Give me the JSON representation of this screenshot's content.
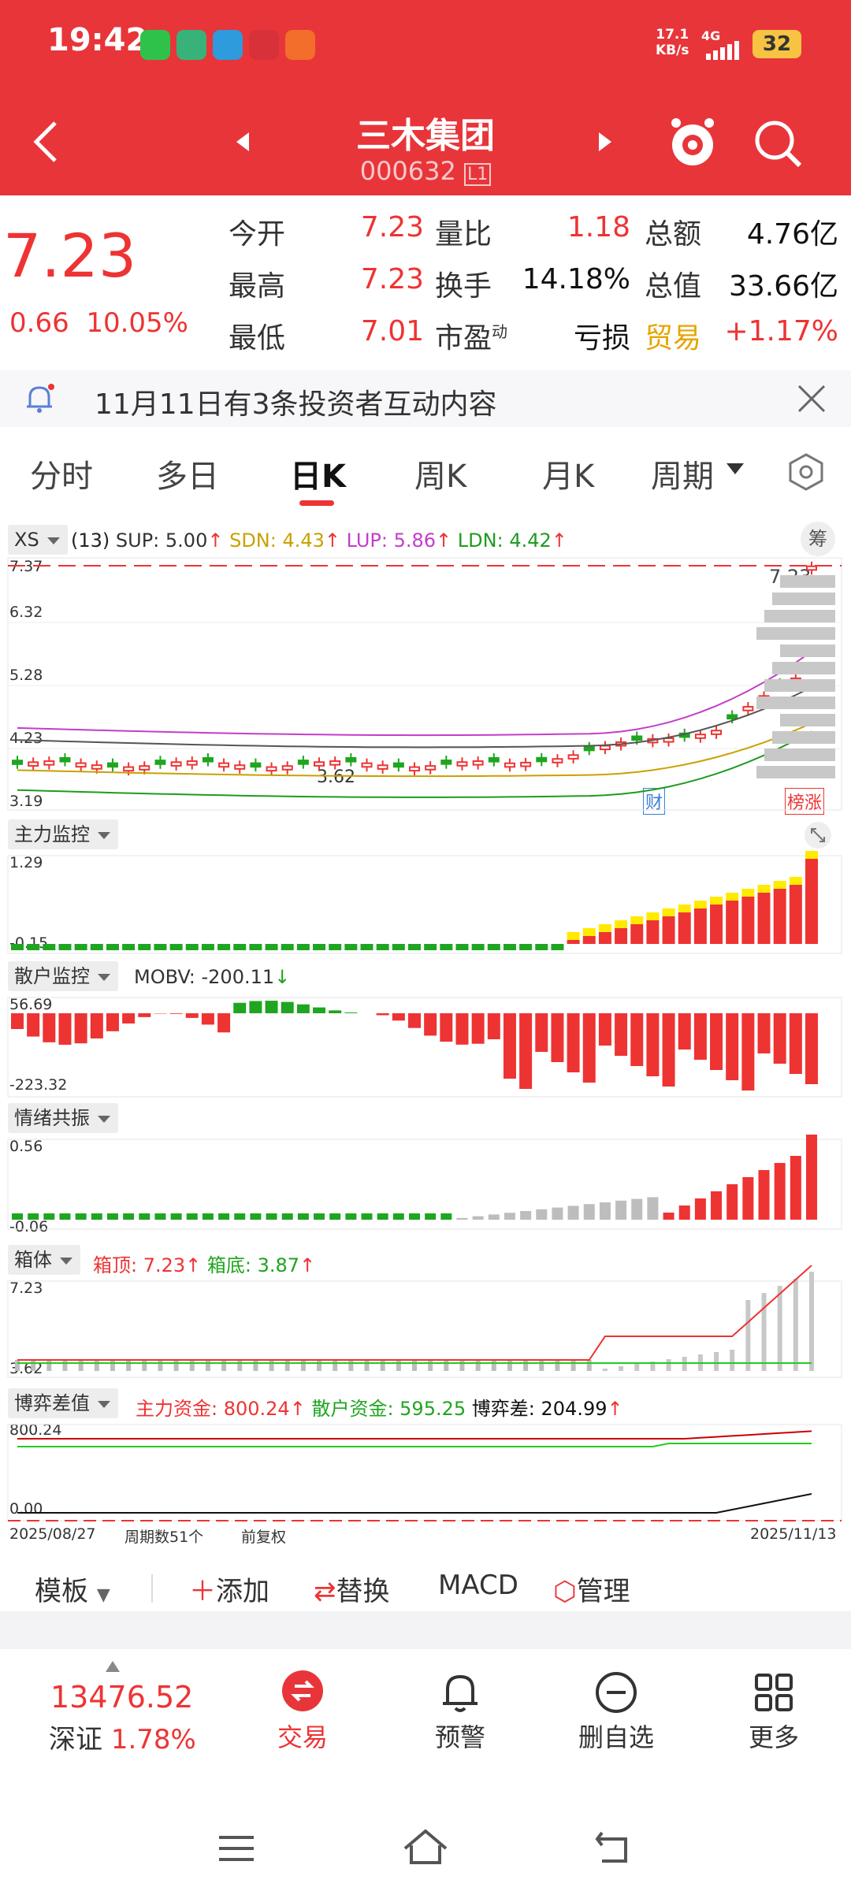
{
  "status": {
    "time": "19:42",
    "net_speed": "17.1",
    "net_unit": "KB/s",
    "signal": "4G",
    "battery": "32"
  },
  "header": {
    "title": "三木集团",
    "code": "000632",
    "level": "L1"
  },
  "quote": {
    "price": "7.23",
    "change": "0.66",
    "pct": "10.05%",
    "rows": [
      {
        "l1": "今开",
        "v1": "7.23",
        "l2": "量比",
        "v2": "1.18",
        "l3": "总额",
        "v3": "4.76亿"
      },
      {
        "l1": "最高",
        "v1": "7.23",
        "l2": "换手",
        "v2": "14.18%",
        "l3": "总值",
        "v3": "33.66亿"
      },
      {
        "l1": "最低",
        "v1": "7.01",
        "l2": "市盈",
        "l2sup": "动",
        "v2": "亏损",
        "l3": "贸易",
        "v3": "+1.17%"
      }
    ]
  },
  "notice": {
    "text": "11月11日有3条投资者互动内容"
  },
  "tabs": [
    "分时",
    "多日",
    "日K",
    "周K",
    "月K",
    "周期"
  ],
  "colors": {
    "red": "#e8353a",
    "up": "#e33",
    "down": "#1fa51f",
    "yellow": "#ffea00",
    "gray": "#bdbdbd"
  },
  "chart": {
    "main": {
      "tag": "XS",
      "params": "(13)",
      "sup": "SUP: 5.00",
      "sdn": "SDN: 4.43",
      "lup": "LUP: 5.86",
      "ldn": "LDN: 4.42",
      "y_ticks": [
        "7.37",
        "6.32",
        "5.28",
        "4.23",
        "3.19"
      ],
      "last": "7.23",
      "low_mark": "3.62",
      "tag_cai": "财",
      "tag_bang": "榜涨",
      "side_btn": "筹"
    },
    "p1": {
      "tag": "主力监控",
      "y_top": "1.29",
      "y_bot": "-0.15"
    },
    "p2": {
      "tag": "散户监控",
      "mobv": "MOBV: -200.11",
      "y_top": "56.69",
      "y_bot": "-223.32"
    },
    "p3": {
      "tag": "情绪共振",
      "y_top": "0.56",
      "y_bot": "-0.06"
    },
    "p4": {
      "tag": "箱体",
      "top": "箱顶: 7.23",
      "bot": "箱底: 3.87",
      "y_top": "7.23",
      "y_bot": "3.62"
    },
    "p5": {
      "tag": "博弈差值",
      "main": "主力资金: 800.24",
      "retail": "散户资金: 595.25",
      "diff": "博弈差: 204.99",
      "y_top": "800.24",
      "y_bot": "0.00"
    },
    "footer": {
      "start": "2025/08/27",
      "count": "周期数51个",
      "adj": "前复权",
      "end": "2025/11/13"
    }
  },
  "toolbar": {
    "template": "模板",
    "add": "添加",
    "replace": "替换",
    "macd": "MACD",
    "manage": "管理"
  },
  "bottom_nav": {
    "index_value": "13476.52",
    "index_name": "深证",
    "index_pct": "1.78%",
    "items": [
      {
        "label": "交易",
        "icon": "trade-icon"
      },
      {
        "label": "预警",
        "icon": "bell-icon"
      },
      {
        "label": "删自选",
        "icon": "remove-icon"
      },
      {
        "label": "更多",
        "icon": "grid-icon"
      }
    ]
  }
}
